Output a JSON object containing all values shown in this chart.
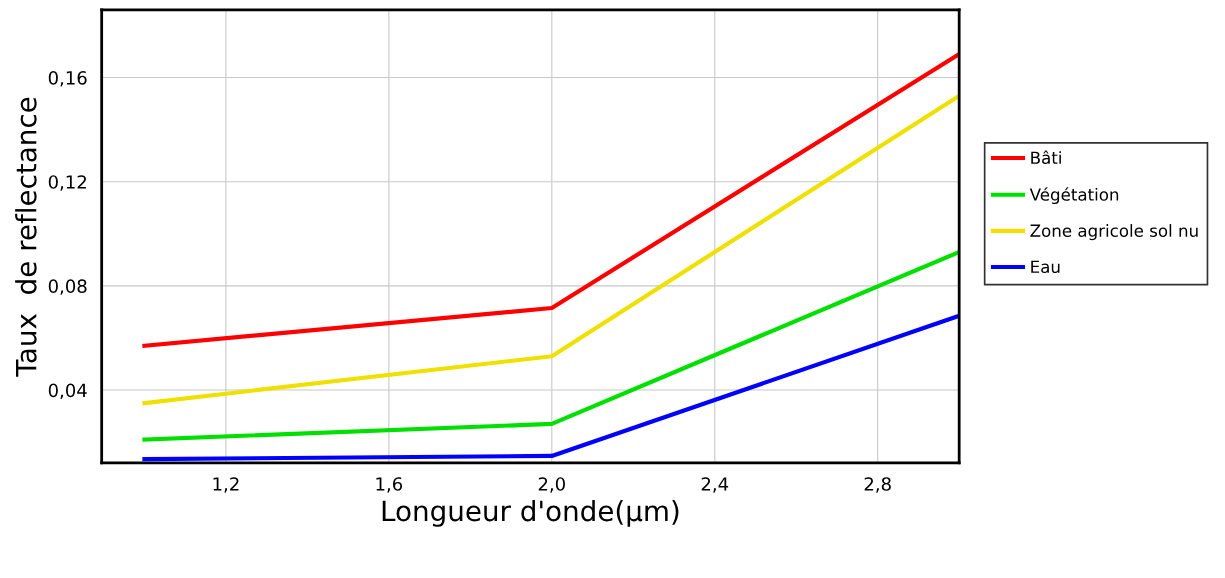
{
  "chart_data": {
    "type": "line",
    "xlabel": "Longueur d'onde(µm)",
    "ylabel": "Taux  de reflectance",
    "x": [
      1.0,
      2.0,
      3.0
    ],
    "series": [
      {
        "name": "Bâti",
        "color": "#ff0000",
        "values": [
          0.057,
          0.0715,
          0.169
        ]
      },
      {
        "name": "Végétation",
        "color": "#00e000",
        "values": [
          0.021,
          0.027,
          0.093
        ]
      },
      {
        "name": "Zone agricole sol nu",
        "color": "#f0e000",
        "values": [
          0.035,
          0.053,
          0.153
        ]
      },
      {
        "name": "Eau",
        "color": "#0000ff",
        "values": [
          0.0135,
          0.0147,
          0.0685
        ]
      }
    ],
    "xlim": [
      0.895,
      3.0
    ],
    "ylim": [
      0.012,
      0.186
    ],
    "xticks": [
      {
        "value": 1.2,
        "label": "1,2"
      },
      {
        "value": 1.6,
        "label": "1,6"
      },
      {
        "value": 2.0,
        "label": "2,0"
      },
      {
        "value": 2.4,
        "label": "2,4"
      },
      {
        "value": 2.8,
        "label": "2,8"
      }
    ],
    "yticks": [
      {
        "value": 0.04,
        "label": "0,04"
      },
      {
        "value": 0.08,
        "label": "0,08"
      },
      {
        "value": 0.12,
        "label": "0,12"
      },
      {
        "value": 0.16,
        "label": "0,16"
      }
    ],
    "grid": true,
    "legend": "right",
    "marker": "none",
    "line_style": "solid"
  }
}
